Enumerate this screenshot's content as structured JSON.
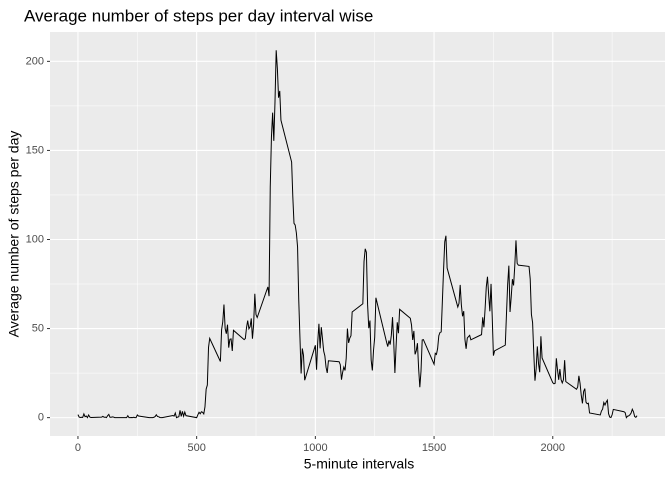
{
  "chart_data": {
    "type": "line",
    "title": "Average number of steps per day interval wise",
    "xlabel": "5-minute intervals",
    "ylabel": "Average number of steps per day",
    "xlim": [
      -117.75,
      2472.75
    ],
    "xticks": [
      0,
      500,
      1000,
      1500,
      2000
    ],
    "x_minor_grid": [
      250,
      750,
      1250,
      1750,
      2250
    ],
    "ylim": [
      -10.31,
      216.48
    ],
    "yticks": [
      0,
      50,
      100,
      150,
      200
    ],
    "y_minor_grid": [
      25,
      75,
      125,
      175
    ],
    "grid": true,
    "color": "#000000",
    "background": "#ebebeb",
    "x": [
      0,
      5,
      10,
      15,
      20,
      25,
      30,
      35,
      40,
      45,
      50,
      55,
      100,
      105,
      110,
      115,
      120,
      125,
      130,
      135,
      140,
      145,
      150,
      155,
      200,
      205,
      210,
      215,
      220,
      225,
      230,
      235,
      240,
      245,
      250,
      255,
      300,
      305,
      310,
      315,
      320,
      325,
      330,
      335,
      340,
      345,
      350,
      355,
      400,
      405,
      410,
      415,
      420,
      425,
      430,
      435,
      440,
      445,
      450,
      455,
      500,
      505,
      510,
      515,
      520,
      525,
      530,
      535,
      540,
      545,
      550,
      555,
      600,
      605,
      610,
      615,
      620,
      625,
      630,
      635,
      640,
      645,
      650,
      655,
      700,
      705,
      710,
      715,
      720,
      725,
      730,
      735,
      740,
      745,
      750,
      755,
      800,
      805,
      810,
      815,
      820,
      825,
      830,
      835,
      840,
      845,
      850,
      855,
      900,
      905,
      910,
      915,
      920,
      925,
      930,
      935,
      940,
      945,
      950,
      955,
      1000,
      1005,
      1010,
      1015,
      1020,
      1025,
      1030,
      1035,
      1040,
      1045,
      1050,
      1055,
      1100,
      1105,
      1110,
      1115,
      1120,
      1125,
      1130,
      1135,
      1140,
      1145,
      1150,
      1155,
      1200,
      1205,
      1210,
      1215,
      1220,
      1225,
      1230,
      1235,
      1240,
      1245,
      1250,
      1255,
      1300,
      1305,
      1310,
      1315,
      1320,
      1325,
      1330,
      1335,
      1340,
      1345,
      1350,
      1355,
      1400,
      1405,
      1410,
      1415,
      1420,
      1425,
      1430,
      1435,
      1440,
      1445,
      1450,
      1455,
      1500,
      1505,
      1510,
      1515,
      1520,
      1525,
      1530,
      1535,
      1540,
      1545,
      1550,
      1555,
      1600,
      1605,
      1610,
      1615,
      1620,
      1625,
      1630,
      1635,
      1640,
      1645,
      1650,
      1655,
      1700,
      1705,
      1710,
      1715,
      1720,
      1725,
      1730,
      1735,
      1740,
      1745,
      1750,
      1755,
      1800,
      1805,
      1810,
      1815,
      1820,
      1825,
      1830,
      1835,
      1840,
      1845,
      1850,
      1855,
      1900,
      1905,
      1910,
      1915,
      1920,
      1925,
      1930,
      1935,
      1940,
      1945,
      1950,
      1955,
      2000,
      2005,
      2010,
      2015,
      2020,
      2025,
      2030,
      2035,
      2040,
      2045,
      2050,
      2055,
      2100,
      2105,
      2110,
      2115,
      2120,
      2125,
      2130,
      2135,
      2140,
      2145,
      2150,
      2155,
      2200,
      2205,
      2210,
      2215,
      2220,
      2225,
      2230,
      2235,
      2240,
      2245,
      2250,
      2255,
      2300,
      2305,
      2310,
      2315,
      2320,
      2325,
      2330,
      2335,
      2340,
      2345,
      2350,
      2355
    ],
    "values": [
      1.7,
      0.3,
      0.1,
      0.2,
      0.1,
      2.1,
      0.5,
      0.9,
      0,
      1.5,
      0.3,
      0.1,
      0.3,
      0.7,
      0.2,
      0.3,
      0,
      1.1,
      1.8,
      0.2,
      0.2,
      0.4,
      0.3,
      0,
      0,
      0,
      1.1,
      0,
      0,
      0.1,
      0,
      0.2,
      0,
      0,
      1.5,
      0.9,
      0,
      0,
      0,
      0,
      0.2,
      0.6,
      1.6,
      0.6,
      0.5,
      0.1,
      0,
      0,
      1.2,
      0.9,
      2.6,
      0,
      0.3,
      0.5,
      4.1,
      0.7,
      3.5,
      0.8,
      3.1,
      1.1,
      0,
      1.6,
      3,
      2.2,
      3.3,
      3,
      2.1,
      6.1,
      16,
      18.3,
      39.5,
      44.5,
      31.5,
      49.3,
      53.8,
      63.5,
      50,
      47.1,
      52.2,
      39.3,
      44,
      44.2,
      37.4,
      49,
      43.8,
      44.4,
      50.5,
      54.5,
      49.9,
      51,
      55.7,
      44.3,
      52.3,
      69.5,
      57.8,
      56.2,
      73.4,
      68.2,
      129.4,
      157.5,
      171.2,
      155.4,
      177.3,
      206.2,
      195.9,
      179.6,
      183.4,
      167,
      143.5,
      124,
      109.1,
      108.1,
      103.7,
      95.9,
      66.2,
      45.2,
      24.8,
      38.8,
      35,
      21,
      40.6,
      26.9,
      42.4,
      52.7,
      38.9,
      50.8,
      44.3,
      37.4,
      34.7,
      28.3,
      25.1,
      31.9,
      31.4,
      29.7,
      21.3,
      25.5,
      28.4,
      26.5,
      33.4,
      50,
      42,
      44.6,
      46,
      59.3,
      63.9,
      87.7,
      94.8,
      92.8,
      63.4,
      50.2,
      54.5,
      32.4,
      26.5,
      37.7,
      45.1,
      67.3,
      42.3,
      39.9,
      43.3,
      41,
      46.2,
      56.4,
      42.8,
      25.1,
      40,
      53.5,
      47.4,
      60.8,
      55.8,
      52,
      43.6,
      48.7,
      35.5,
      37.5,
      41.8,
      27.5,
      17.1,
      26.1,
      43.6,
      43.8,
      30,
      36.1,
      35.5,
      38.8,
      46,
      47.8,
      48.1,
      65.3,
      82.9,
      98.7,
      102.1,
      84,
      62.1,
      64.1,
      74.5,
      63.2,
      56.9,
      59.8,
      43.9,
      38.6,
      44.7,
      45.5,
      46.2,
      43.7,
      46.6,
      56.3,
      50.7,
      61.2,
      73.4,
      79.1,
      68.9,
      59.7,
      75.1,
      56.5,
      34.8,
      37.5,
      40.7,
      58,
      74.7,
      85.3,
      59.3,
      67.8,
      77.7,
      74.2,
      85.3,
      99.5,
      86.6,
      85.6,
      84.9,
      77.8,
      58,
      53.4,
      36.3,
      20.7,
      27.4,
      40,
      30.2,
      25.5,
      45.7,
      33.5,
      19.6,
      19,
      19.3,
      33.3,
      26.8,
      21.2,
      27.3,
      21.3,
      19.5,
      21.3,
      32.3,
      20.2,
      15.9,
      17.2,
      23.5,
      19.2,
      12.5,
      8,
      14.7,
      16.3,
      8.7,
      7.8,
      8.1,
      2.6,
      1.5,
      3.7,
      4.8,
      8.5,
      7.1,
      8.7,
      9.8,
      2.2,
      0.3,
      0.1,
      1.6,
      4.6,
      3.3,
      2.8,
      0,
      0.8,
      1,
      1.6,
      2.6,
      4.7,
      3.3,
      0.6,
      0.2,
      1.1
    ]
  }
}
